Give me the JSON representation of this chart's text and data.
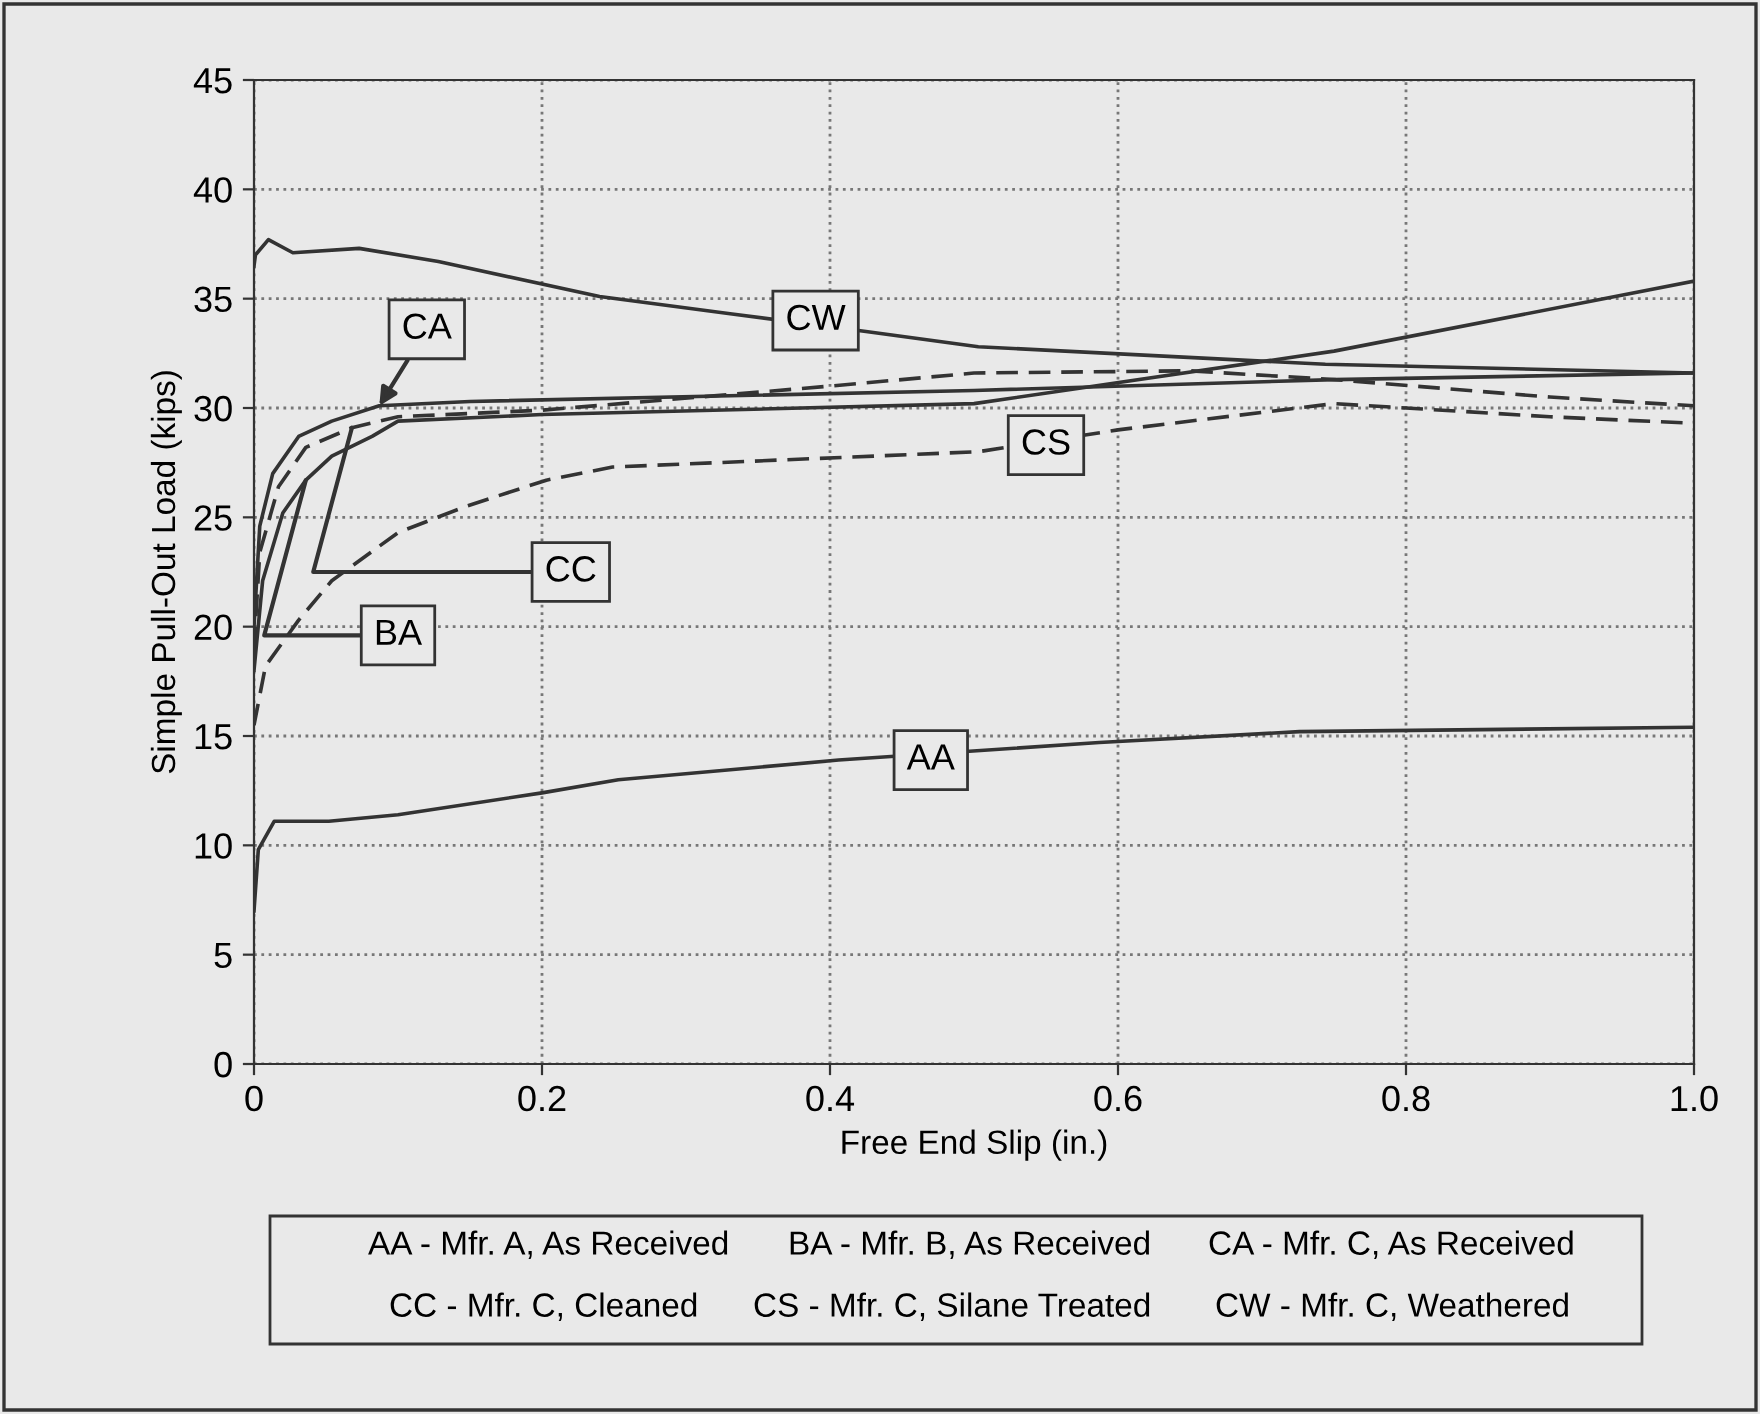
{
  "chart_data": {
    "type": "line",
    "xlabel": "Free End Slip (in.)",
    "ylabel": "Simple Pull-Out Load (kips)",
    "xlim": [
      0,
      1.0
    ],
    "xticks": [
      {
        "value": 0,
        "label": "0"
      },
      0.2,
      0.4,
      0.6,
      0.8,
      {
        "value": 1.0,
        "label": "1.0"
      }
    ],
    "ylim": [
      0,
      45
    ],
    "yticks": [
      0,
      5,
      10,
      15,
      20,
      25,
      30,
      35,
      40,
      45
    ],
    "grid": true,
    "legend": false,
    "marker": "none",
    "series": [
      {
        "name": "AA",
        "color": "#333333",
        "line_style": "solid",
        "x": [
          0,
          0.003,
          0.014,
          0.052,
          0.1,
          0.2,
          0.253,
          0.406,
          0.587,
          0.726,
          1.0
        ],
        "values": [
          7.0,
          9.8,
          11.1,
          11.1,
          11.4,
          12.4,
          13.0,
          13.9,
          14.7,
          15.2,
          15.4
        ]
      },
      {
        "name": "BA",
        "color": "#333333",
        "line_style": "solid",
        "x": [
          0,
          0.006,
          0.02,
          0.036,
          0.054,
          0.082,
          0.1,
          0.2,
          0.5,
          0.75,
          1.0
        ],
        "values": [
          18,
          22.1,
          25.2,
          26.7,
          27.8,
          28.7,
          29.4,
          29.7,
          30.2,
          32.6,
          35.8
        ]
      },
      {
        "name": "CA",
        "color": "#333333",
        "line_style": "solid",
        "x": [
          0,
          0.004,
          0.013,
          0.031,
          0.054,
          0.087,
          0.15,
          0.5,
          0.75,
          1.0
        ],
        "values": [
          20,
          24.6,
          27.0,
          28.7,
          29.4,
          30.1,
          30.3,
          30.8,
          31.3,
          31.6
        ]
      },
      {
        "name": "CC",
        "color": "#333333",
        "line_style": "dashed",
        "x": [
          0,
          0.004,
          0.017,
          0.036,
          0.068,
          0.1,
          0.2,
          0.4,
          0.5,
          0.65,
          0.75,
          0.9,
          1.0
        ],
        "values": [
          19,
          23.4,
          26.4,
          28.2,
          29.1,
          29.6,
          29.9,
          31.0,
          31.6,
          31.7,
          31.3,
          30.5,
          30.1
        ]
      },
      {
        "name": "CS",
        "color": "#333333",
        "line_style": "dashed",
        "x": [
          0,
          0.008,
          0.031,
          0.054,
          0.1,
          0.147,
          0.203,
          0.249,
          0.503,
          0.6,
          0.75,
          0.9,
          1.0
        ],
        "values": [
          15.5,
          18.2,
          20.3,
          22.1,
          24.3,
          25.5,
          26.7,
          27.3,
          28.0,
          29.0,
          30.2,
          29.6,
          29.3
        ]
      },
      {
        "name": "CW",
        "color": "#333333",
        "line_style": "solid",
        "x": [
          0,
          0.001,
          0.01,
          0.027,
          0.073,
          0.128,
          0.24,
          0.332,
          0.425,
          0.503,
          0.744,
          1.0
        ],
        "values": [
          36.5,
          37.0,
          37.7,
          37.1,
          37.3,
          36.7,
          35.1,
          34.3,
          33.5,
          32.8,
          32.0,
          31.6
        ]
      }
    ],
    "annotations": [
      "AA - Mfr. A, As Received",
      "BA - Mfr. B, As Received",
      "CA - Mfr. C, As Received",
      "CC - Mfr. C, Cleaned",
      "CS - Mfr. C, Silane Treated",
      "CW - Mfr. C, Weathered"
    ]
  }
}
